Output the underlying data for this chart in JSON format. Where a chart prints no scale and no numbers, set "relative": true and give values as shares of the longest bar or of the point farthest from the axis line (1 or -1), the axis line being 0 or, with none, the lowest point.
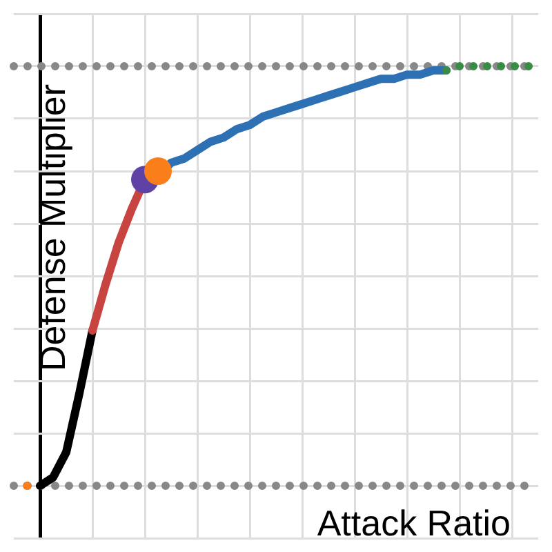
{
  "chart_data": {
    "type": "line",
    "relative": true,
    "xlabel": "Attack Ratio",
    "ylabel": "Defense Multiplier",
    "grid": true,
    "legend": false,
    "marker": "none",
    "tick_labels": false,
    "categories": [
      null,
      null,
      null,
      null,
      null,
      null,
      null,
      null,
      null,
      null,
      null,
      null,
      null,
      null,
      null,
      null,
      null,
      null,
      null,
      null,
      null,
      null,
      null,
      null,
      null,
      null,
      null,
      null,
      null,
      null,
      null,
      null,
      null,
      null,
      null,
      null,
      null,
      null,
      null,
      null,
      null
    ],
    "series": [
      {
        "color": "#888888",
        "line_style": "dotted",
        "values": [
          0,
          0,
          0,
          0,
          0,
          0,
          0,
          0,
          0,
          0,
          0,
          0,
          0,
          0,
          0,
          0,
          0,
          0,
          0,
          0,
          0,
          0,
          0,
          0,
          0,
          0,
          0,
          0,
          0,
          0,
          0,
          0,
          0,
          0,
          0,
          0,
          0,
          0,
          0,
          0,
          0
        ]
      },
      {
        "color": "#888888",
        "line_style": "dotted",
        "values": [
          1,
          1,
          1,
          1,
          1,
          1,
          1,
          1,
          1,
          1,
          1,
          1,
          1,
          1,
          1,
          1,
          1,
          1,
          1,
          1,
          1,
          1,
          1,
          1,
          1,
          1,
          1,
          1,
          1,
          1,
          1,
          1,
          1,
          1,
          1,
          1,
          1,
          1,
          1,
          1,
          1
        ]
      },
      {
        "color": "#fa7e19",
        "line_style": "dotted",
        "values": [
          null,
          0,
          0,
          null,
          null,
          null,
          null,
          null,
          null,
          null,
          null,
          null,
          null,
          null,
          null,
          null,
          null,
          null,
          null,
          null,
          null,
          null,
          null,
          null,
          null,
          null,
          null,
          null,
          null,
          null,
          null,
          null,
          null,
          null,
          null,
          null,
          null,
          null,
          null,
          null,
          null
        ]
      },
      {
        "color": "#000000",
        "line_style": "solid",
        "values": [
          null,
          null,
          0,
          0.02,
          0.08,
          0.22,
          0.37,
          null,
          null,
          null,
          null,
          null,
          null,
          null,
          null,
          null,
          null,
          null,
          null,
          null,
          null,
          null,
          null,
          null,
          null,
          null,
          null,
          null,
          null,
          null,
          null,
          null,
          null,
          null,
          null,
          null,
          null,
          null,
          null,
          null,
          null
        ]
      },
      {
        "color": "#c74440",
        "line_style": "solid",
        "values": [
          null,
          null,
          null,
          null,
          null,
          null,
          0.37,
          0.48,
          0.58,
          0.66,
          0.73,
          null,
          null,
          null,
          null,
          null,
          null,
          null,
          null,
          null,
          null,
          null,
          null,
          null,
          null,
          null,
          null,
          null,
          null,
          null,
          null,
          null,
          null,
          null,
          null,
          null,
          null,
          null,
          null,
          null,
          null
        ]
      },
      {
        "color": "#2d70b3",
        "line_style": "solid",
        "values": [
          null,
          null,
          null,
          null,
          null,
          null,
          null,
          null,
          null,
          null,
          0.73,
          0.74,
          0.77,
          0.78,
          0.8,
          0.82,
          0.83,
          0.85,
          0.86,
          0.88,
          0.89,
          0.9,
          0.91,
          0.92,
          0.93,
          0.94,
          0.95,
          0.96,
          0.97,
          0.97,
          0.98,
          0.98,
          0.99,
          0.99,
          null,
          null,
          null,
          null,
          null,
          null,
          null
        ]
      },
      {
        "color": "#388c46",
        "line_style": "dotted",
        "values": [
          null,
          null,
          null,
          null,
          null,
          null,
          null,
          null,
          null,
          null,
          null,
          null,
          null,
          null,
          null,
          null,
          null,
          null,
          null,
          null,
          null,
          null,
          null,
          null,
          null,
          null,
          null,
          null,
          null,
          null,
          null,
          null,
          null,
          0.99,
          1,
          1,
          1,
          1,
          1,
          1,
          1
        ]
      },
      {
        "color": "#6042a6",
        "marker": "circle",
        "values": [
          null,
          null,
          null,
          null,
          null,
          null,
          null,
          null,
          null,
          null,
          0.73,
          null,
          null,
          null,
          null,
          null,
          null,
          null,
          null,
          null,
          null,
          null,
          null,
          null,
          null,
          null,
          null,
          null,
          null,
          null,
          null,
          null,
          null,
          null,
          null,
          null,
          null,
          null,
          null,
          null,
          null
        ]
      },
      {
        "color": "#fa7e19",
        "marker": "circle",
        "values": [
          null,
          null,
          null,
          null,
          null,
          null,
          null,
          null,
          null,
          null,
          null,
          0.75,
          null,
          null,
          null,
          null,
          null,
          null,
          null,
          null,
          null,
          null,
          null,
          null,
          null,
          null,
          null,
          null,
          null,
          null,
          null,
          null,
          null,
          null,
          null,
          null,
          null,
          null,
          null,
          null,
          null
        ]
      }
    ]
  }
}
